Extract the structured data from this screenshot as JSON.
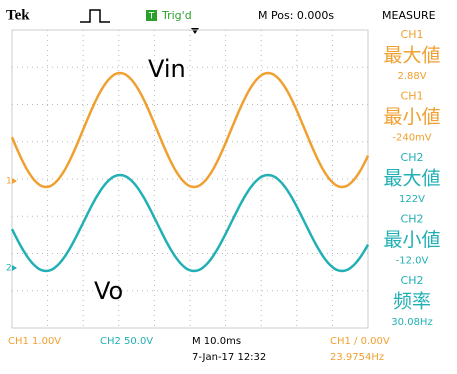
{
  "header": {
    "brand": "Tek",
    "trigger_badge": "T",
    "trigger_status": "Trig'd",
    "position": "M Pos: 0.000s",
    "menu": "MEASURE"
  },
  "waveform_labels": {
    "vin": "Vin",
    "vo": "Vo",
    "ch1_marker": "1",
    "ch2_marker": "2"
  },
  "measurements": [
    {
      "channel": "CH1",
      "name": "最大値",
      "value": "2.88V"
    },
    {
      "channel": "CH1",
      "name": "最小値",
      "value": "-240mV"
    },
    {
      "channel": "CH2",
      "name": "最大値",
      "value": "122V"
    },
    {
      "channel": "CH2",
      "name": "最小値",
      "value": "-12.0V"
    },
    {
      "channel": "CH2",
      "name": "频率",
      "value": "30.08Hz"
    }
  ],
  "footer": {
    "ch1_scale": "CH1  1.00V",
    "ch2_scale": "CH2  50.0V",
    "timebase": "M 10.0ms",
    "datetime": "7-Jan-17 12:32",
    "trigger": "CH1 ∕ 0.00V",
    "trigger_freq": "23.9754Hz"
  }
}
